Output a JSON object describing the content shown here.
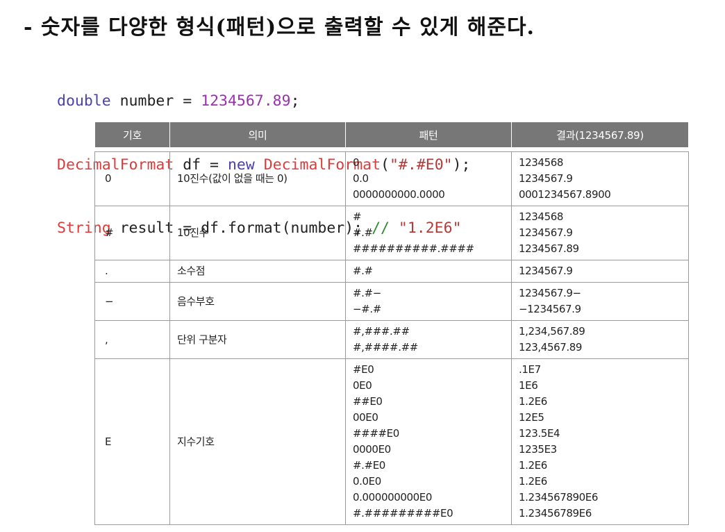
{
  "title": "- 숫자를 다양한 형식(패턴)으로 출력할 수 있게 해준다.",
  "code": {
    "line1": [
      {
        "t": "double",
        "c": "c-kw"
      },
      {
        "t": " number = ",
        "c": "c-pl"
      },
      {
        "t": "1234567.89",
        "c": "c-num"
      },
      {
        "t": ";",
        "c": "c-pl"
      }
    ],
    "line2": [
      {
        "t": "DecimalFormat",
        "c": "c-typ"
      },
      {
        "t": " df = ",
        "c": "c-pl"
      },
      {
        "t": "new",
        "c": "c-kw"
      },
      {
        "t": " ",
        "c": "c-pl"
      },
      {
        "t": "DecimalFormat",
        "c": "c-typ"
      },
      {
        "t": "(",
        "c": "c-pl"
      },
      {
        "t": "\"#.#E0\"",
        "c": "c-str"
      },
      {
        "t": ");",
        "c": "c-pl"
      }
    ],
    "line3": [
      {
        "t": "String",
        "c": "c-typ"
      },
      {
        "t": " result = df.format(number); ",
        "c": "c-pl"
      },
      {
        "t": "// ",
        "c": "c-cmt"
      },
      {
        "t": "\"1.2E6\"",
        "c": "c-str"
      }
    ]
  },
  "table": {
    "headers": [
      "기호",
      "의미",
      "패턴",
      "결과(1234567.89)"
    ],
    "rows": [
      {
        "symbol": "0",
        "meaning": "10진수(값이 없을 때는 0)",
        "patterns": [
          "0",
          "0.0",
          "0000000000.0000"
        ],
        "results": [
          "1234568",
          "1234567.9",
          "0001234567.8900"
        ]
      },
      {
        "symbol": "#",
        "meaning": "10진수",
        "patterns": [
          "#",
          "#.#",
          "##########.####"
        ],
        "results": [
          "1234568",
          "1234567.9",
          "1234567.89"
        ]
      },
      {
        "symbol": ".",
        "meaning": "소수점",
        "patterns": [
          "#.#"
        ],
        "results": [
          "1234567.9"
        ]
      },
      {
        "symbol": "−",
        "meaning": "음수부호",
        "patterns": [
          "#.#−",
          "−#.#"
        ],
        "results": [
          "1234567.9−",
          "−1234567.9"
        ]
      },
      {
        "symbol": ",",
        "meaning": "단위 구분자",
        "patterns": [
          "#,###.##",
          "#,####.##"
        ],
        "results": [
          "1,234,567.89",
          "123,4567.89"
        ]
      },
      {
        "symbol": "E",
        "meaning": "지수기호",
        "patterns": [
          "#E0",
          "0E0",
          "##E0",
          "00E0",
          "####E0",
          "0000E0",
          "#.#E0",
          "0.0E0",
          "0.000000000E0",
          "#.#########E0"
        ],
        "results": [
          ".1E7",
          "1E6",
          "1.2E6",
          "12E5",
          "123.5E4",
          "1235E3",
          "1.2E6",
          "1.2E6",
          "1.234567890E6",
          "1.23456789E6"
        ]
      }
    ]
  }
}
